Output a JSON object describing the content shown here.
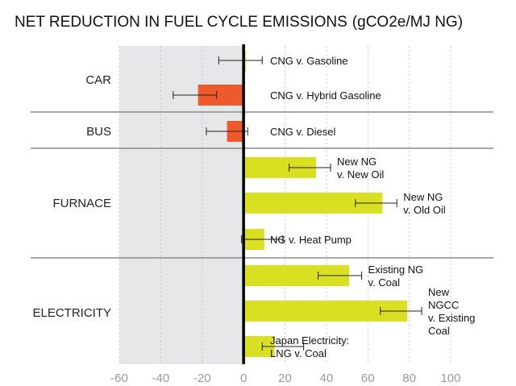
{
  "chart_data": {
    "type": "bar",
    "orientation": "horizontal",
    "title": "NET REDUCTION IN FUEL CYCLE EMISSIONS",
    "title_unit": "(gCO2e/MJ NG)",
    "xlim": [
      -60,
      100
    ],
    "x_ticks": [
      "-60",
      "-40",
      "-20",
      "0",
      "20",
      "40",
      "60",
      "80",
      "100"
    ],
    "shaded_region": [
      -60,
      0
    ],
    "colors": {
      "positive": "#d9e021",
      "negative": "#ee5a2c",
      "shade": "#e6e7e8",
      "zero_line": "#000000",
      "divider": "#8c8c8c"
    },
    "groups": [
      {
        "name": "CAR",
        "bars": [
          {
            "label": [
              "CNG v. Gasoline"
            ],
            "value": 1,
            "err_low": -12,
            "err_high": 9
          },
          {
            "label": [
              "CNG v. Hybrid Gasoline"
            ],
            "value": -22,
            "err_low": -34,
            "err_high": -13
          }
        ]
      },
      {
        "name": "BUS",
        "bars": [
          {
            "label": [
              "CNG v. Diesel"
            ],
            "value": -8,
            "err_low": -18,
            "err_high": 2
          }
        ]
      },
      {
        "name": "FURNACE",
        "bars": [
          {
            "label": [
              "New NG",
              "v. New Oil"
            ],
            "value": 35,
            "err_low": 22,
            "err_high": 42
          },
          {
            "label": [
              "New NG",
              "v. Old Oil"
            ],
            "value": 67,
            "err_low": 54,
            "err_high": 74
          },
          {
            "label": [
              "NG v. Heat Pump"
            ],
            "value": 10,
            "err_low": -1,
            "err_high": 19
          }
        ]
      },
      {
        "name": "ELECTRICITY",
        "bars": [
          {
            "label": [
              "Existing NG",
              "v. Coal"
            ],
            "value": 51,
            "err_low": 36,
            "err_high": 57
          },
          {
            "label": [
              "New",
              "NGCC",
              "v. Existing",
              "Coal"
            ],
            "value": 79,
            "err_low": 66,
            "err_high": 86
          },
          {
            "label": [
              "Japan Electricity:",
              "LNG v. Coal"
            ],
            "value": 15,
            "err_low": 9,
            "err_high": 29
          }
        ]
      }
    ]
  }
}
